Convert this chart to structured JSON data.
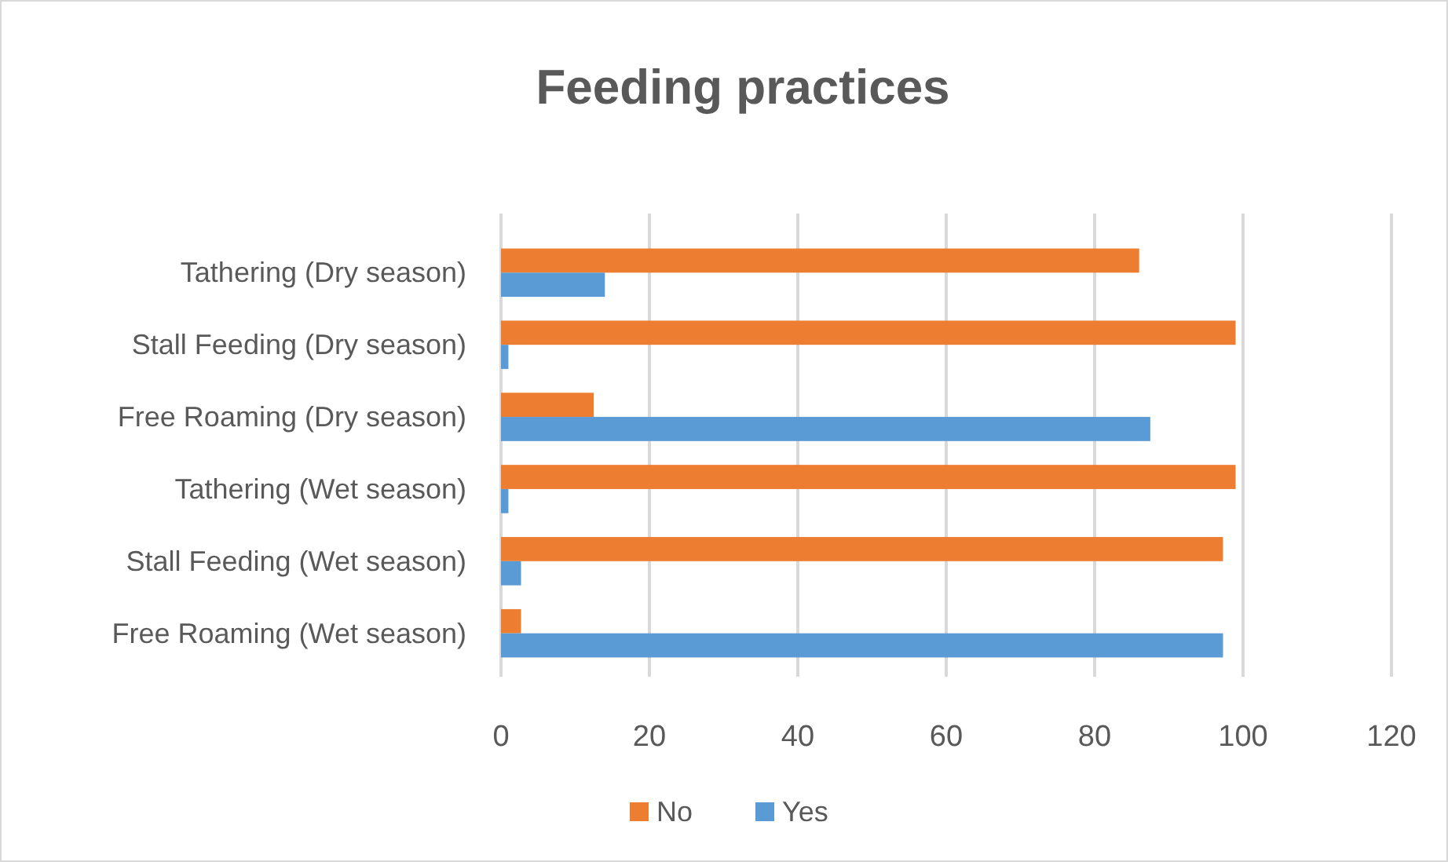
{
  "chart_data": {
    "type": "bar",
    "orientation": "horizontal",
    "title": "Feeding practices",
    "categories": [
      "Tathering (Dry season)",
      "Stall Feeding (Dry season)",
      "Free Roaming (Dry season)",
      "Tathering (Wet season)",
      "Stall Feeding (Wet season)",
      "Free Roaming (Wet season)"
    ],
    "series": [
      {
        "name": "No",
        "color": "#ed7d31",
        "values": [
          86,
          99,
          12.5,
          99,
          97.3,
          2.7
        ]
      },
      {
        "name": "Yes",
        "color": "#5b9bd5",
        "values": [
          14,
          1,
          87.5,
          1,
          2.7,
          97.3
        ]
      }
    ],
    "xlim": [
      0,
      120
    ],
    "xticks": [
      0,
      20,
      40,
      60,
      80,
      100,
      120
    ],
    "grid": "x",
    "legend": "bottom"
  }
}
